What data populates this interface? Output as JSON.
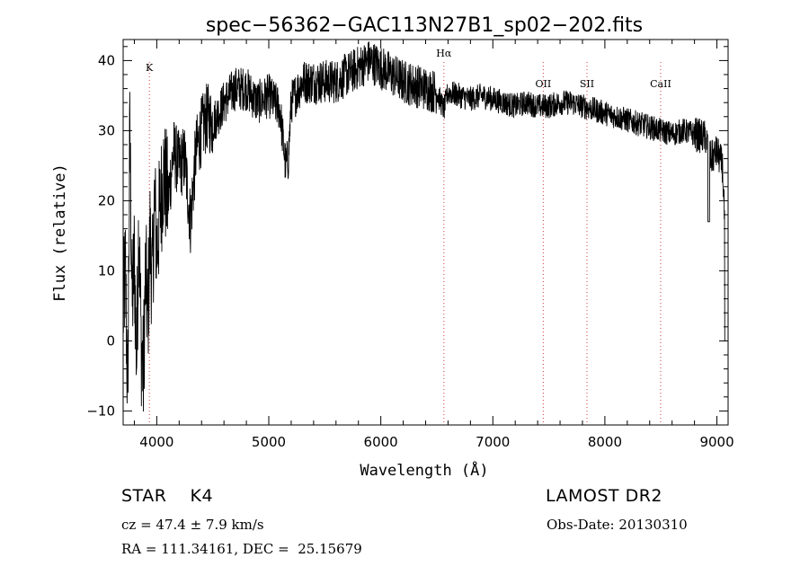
{
  "chart_data": {
    "type": "line",
    "title": "spec−56362−GAC113N27B1_sp02−202.fits",
    "xlabel": "Wavelength (Å)",
    "ylabel": "Flux (relative)",
    "xlim": [
      3700,
      9100
    ],
    "ylim": [
      -12,
      43
    ],
    "xticks": [
      4000,
      5000,
      6000,
      7000,
      8000,
      9000
    ],
    "yticks": [
      -10,
      0,
      10,
      20,
      30,
      40
    ],
    "xtick_labels": [
      "4000",
      "5000",
      "6000",
      "7000",
      "8000",
      "9000"
    ],
    "ytick_labels": [
      "−10",
      "0",
      "10",
      "20",
      "30",
      "40"
    ],
    "lines": [
      {
        "label": "K",
        "x": 3934
      },
      {
        "label": "Hα",
        "x": 6563
      },
      {
        "label": "OII",
        "x": 7450
      },
      {
        "label": "SII",
        "x": 7840
      },
      {
        "label": "CaII",
        "x": 8498
      }
    ],
    "spectrum": {
      "x": [
        3700,
        3720,
        3740,
        3760,
        3780,
        3800,
        3820,
        3840,
        3860,
        3880,
        3900,
        3920,
        3940,
        3960,
        3980,
        4000,
        4030,
        4060,
        4100,
        4150,
        4200,
        4250,
        4300,
        4350,
        4400,
        4450,
        4500,
        4600,
        4700,
        4800,
        4900,
        5000,
        5100,
        5150,
        5175,
        5200,
        5300,
        5400,
        5500,
        5600,
        5700,
        5800,
        5900,
        6000,
        6100,
        6200,
        6300,
        6400,
        6500,
        6563,
        6600,
        6700,
        6800,
        6900,
        7000,
        7100,
        7200,
        7300,
        7400,
        7500,
        7600,
        7700,
        7800,
        7900,
        8000,
        8100,
        8200,
        8300,
        8400,
        8500,
        8600,
        8700,
        8800,
        8900,
        8950,
        9000,
        9050,
        9080
      ],
      "y": [
        4,
        10,
        -8,
        30,
        5,
        12,
        -3,
        18,
        0,
        -5,
        10,
        3,
        15,
        8,
        20,
        13,
        19,
        24,
        20,
        27,
        25,
        26,
        17,
        27,
        30,
        32,
        31,
        34,
        36,
        36,
        34,
        35,
        33,
        25,
        26,
        34,
        37,
        37,
        37,
        37,
        38,
        39,
        40,
        39,
        38,
        37,
        36.5,
        36,
        35.5,
        33,
        35.5,
        35,
        34.5,
        35,
        34.5,
        34,
        33.5,
        34,
        33.5,
        33.5,
        34,
        34,
        33.5,
        33,
        32.5,
        32,
        31.5,
        31,
        30.5,
        30,
        29.5,
        30,
        29.5,
        29,
        26,
        27,
        25,
        12
      ]
    }
  },
  "info": {
    "class_line": "STAR    K4",
    "survey": "LAMOST DR2",
    "cz": "cz = 47.4 ± 7.9 km/s",
    "obs_date": "Obs-Date: 20130310",
    "coords": "RA = 111.34161, DEC =  25.15679"
  }
}
